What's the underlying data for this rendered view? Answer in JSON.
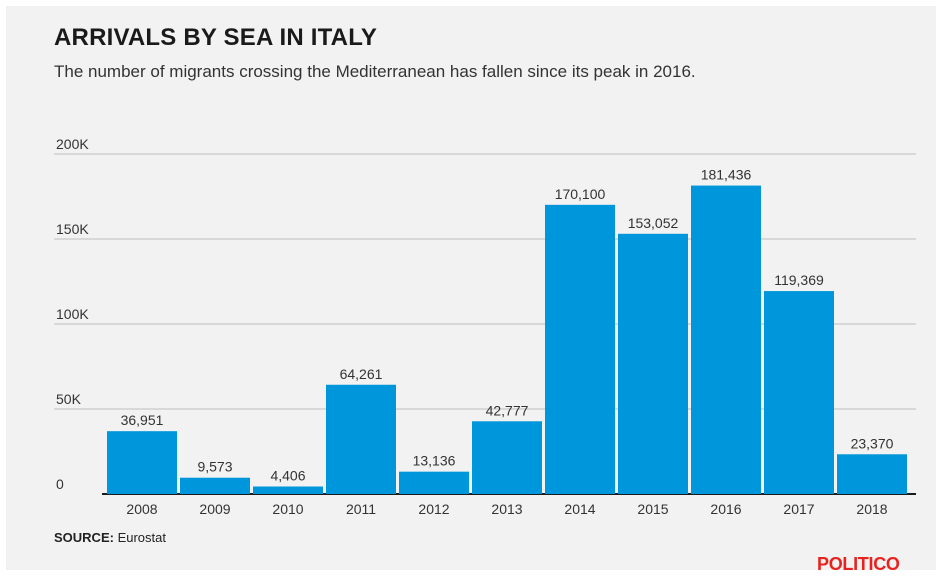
{
  "chart_data": {
    "type": "bar",
    "title": "ARRIVALS BY SEA IN ITALY",
    "subtitle": "The number of migrants crossing the Mediterranean has fallen since its peak in 2016.",
    "categories": [
      "2008",
      "2009",
      "2010",
      "2011",
      "2012",
      "2013",
      "2014",
      "2015",
      "2016",
      "2017",
      "2018"
    ],
    "values": [
      36951,
      9573,
      4406,
      64261,
      13136,
      42777,
      170100,
      153052,
      181436,
      119369,
      23370
    ],
    "value_labels": [
      "36,951",
      "9,573",
      "4,406",
      "64,261",
      "13,136",
      "42,777",
      "170,100",
      "153,052",
      "181,436",
      "119,369",
      "23,370"
    ],
    "y_ticks": [
      {
        "value": 0,
        "label": "0"
      },
      {
        "value": 50000,
        "label": "50K"
      },
      {
        "value": 100000,
        "label": "100K"
      },
      {
        "value": 150000,
        "label": "150K"
      },
      {
        "value": 200000,
        "label": "200K"
      }
    ],
    "ylim": [
      0,
      200000
    ],
    "grid": true,
    "bar_color": "#0096db"
  },
  "source_label": "SOURCE:",
  "source_text": "Eurostat",
  "brand": "POLITICO"
}
